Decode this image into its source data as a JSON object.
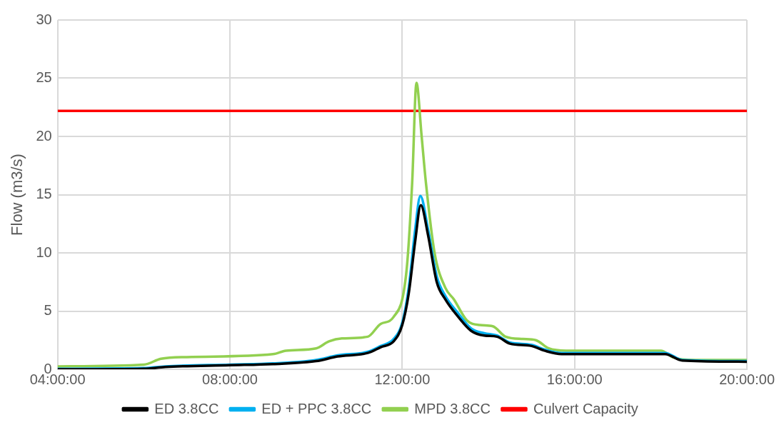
{
  "chart_data": {
    "type": "line",
    "ylabel": "Flow (m3/s)",
    "xlim": [
      4,
      20
    ],
    "xticks": [
      {
        "value": 4,
        "label": "04:00:00"
      },
      {
        "value": 8,
        "label": "08:00:00"
      },
      {
        "value": 12,
        "label": "12:00:00"
      },
      {
        "value": 16,
        "label": "16:00:00"
      },
      {
        "value": 20,
        "label": "20:00:00"
      }
    ],
    "ylim": [
      0,
      30
    ],
    "yticks": [
      0,
      5,
      10,
      15,
      20,
      25,
      30
    ],
    "grid": true,
    "legend": "bottom",
    "marker": "none",
    "line_style": "solid",
    "series": [
      {
        "name": "ED 3.8CC",
        "color": "#000000",
        "x": [
          4,
          6,
          6.5,
          8,
          9,
          10,
          10.5,
          11.2,
          11.5,
          11.8,
          12,
          12.15,
          12.3,
          12.43,
          12.6,
          12.8,
          13,
          13.3,
          13.6,
          13.9,
          14.2,
          14.5,
          15,
          15.3,
          15.7,
          18.1,
          18.5,
          20
        ],
        "values": [
          0,
          0.05,
          0.2,
          0.35,
          0.45,
          0.7,
          1.1,
          1.4,
          1.9,
          2.4,
          3.8,
          6.5,
          11,
          14.1,
          11.5,
          7.5,
          6,
          4.5,
          3.3,
          2.9,
          2.8,
          2.2,
          2,
          1.6,
          1.3,
          1.3,
          0.75,
          0.65
        ]
      },
      {
        "name": "ED + PPC 3.8CC",
        "color": "#00b0f0",
        "x": [
          4,
          6,
          6.5,
          8,
          9,
          10,
          10.5,
          11.2,
          11.5,
          11.8,
          12,
          12.15,
          12.3,
          12.42,
          12.6,
          12.8,
          13,
          13.3,
          13.6,
          13.9,
          14.2,
          14.5,
          15,
          15.3,
          15.7,
          18.1,
          18.5,
          20
        ],
        "values": [
          0.05,
          0.1,
          0.25,
          0.4,
          0.5,
          0.8,
          1.2,
          1.5,
          2,
          2.6,
          4,
          7,
          12,
          14.9,
          12,
          8,
          6.3,
          4.8,
          3.5,
          3.1,
          2.9,
          2.3,
          2.1,
          1.7,
          1.4,
          1.4,
          0.8,
          0.7
        ]
      },
      {
        "name": "MPD 3.8CC",
        "color": "#92d050",
        "x": [
          4,
          6,
          6.4,
          7,
          9,
          9.3,
          10,
          10.3,
          10.6,
          11.2,
          11.5,
          11.8,
          12.1,
          12.23,
          12.33,
          12.45,
          12.55,
          12.75,
          13,
          13.2,
          13.5,
          13.8,
          14.1,
          14.4,
          14.8,
          15.1,
          15.4,
          15.8,
          18,
          18.3,
          18.8,
          20
        ],
        "values": [
          0.25,
          0.4,
          0.9,
          1.05,
          1.3,
          1.6,
          1.8,
          2.4,
          2.65,
          2.8,
          3.9,
          4.5,
          8.5,
          16,
          24.6,
          20,
          16,
          10,
          7,
          6,
          4.2,
          3.8,
          3.7,
          2.8,
          2.6,
          2.5,
          1.8,
          1.6,
          1.6,
          1,
          0.8,
          0.8
        ]
      },
      {
        "name": "Culvert Capacity",
        "color": "#ff0000",
        "x": [
          4,
          20
        ],
        "values": [
          22.2,
          22.2
        ]
      }
    ]
  }
}
